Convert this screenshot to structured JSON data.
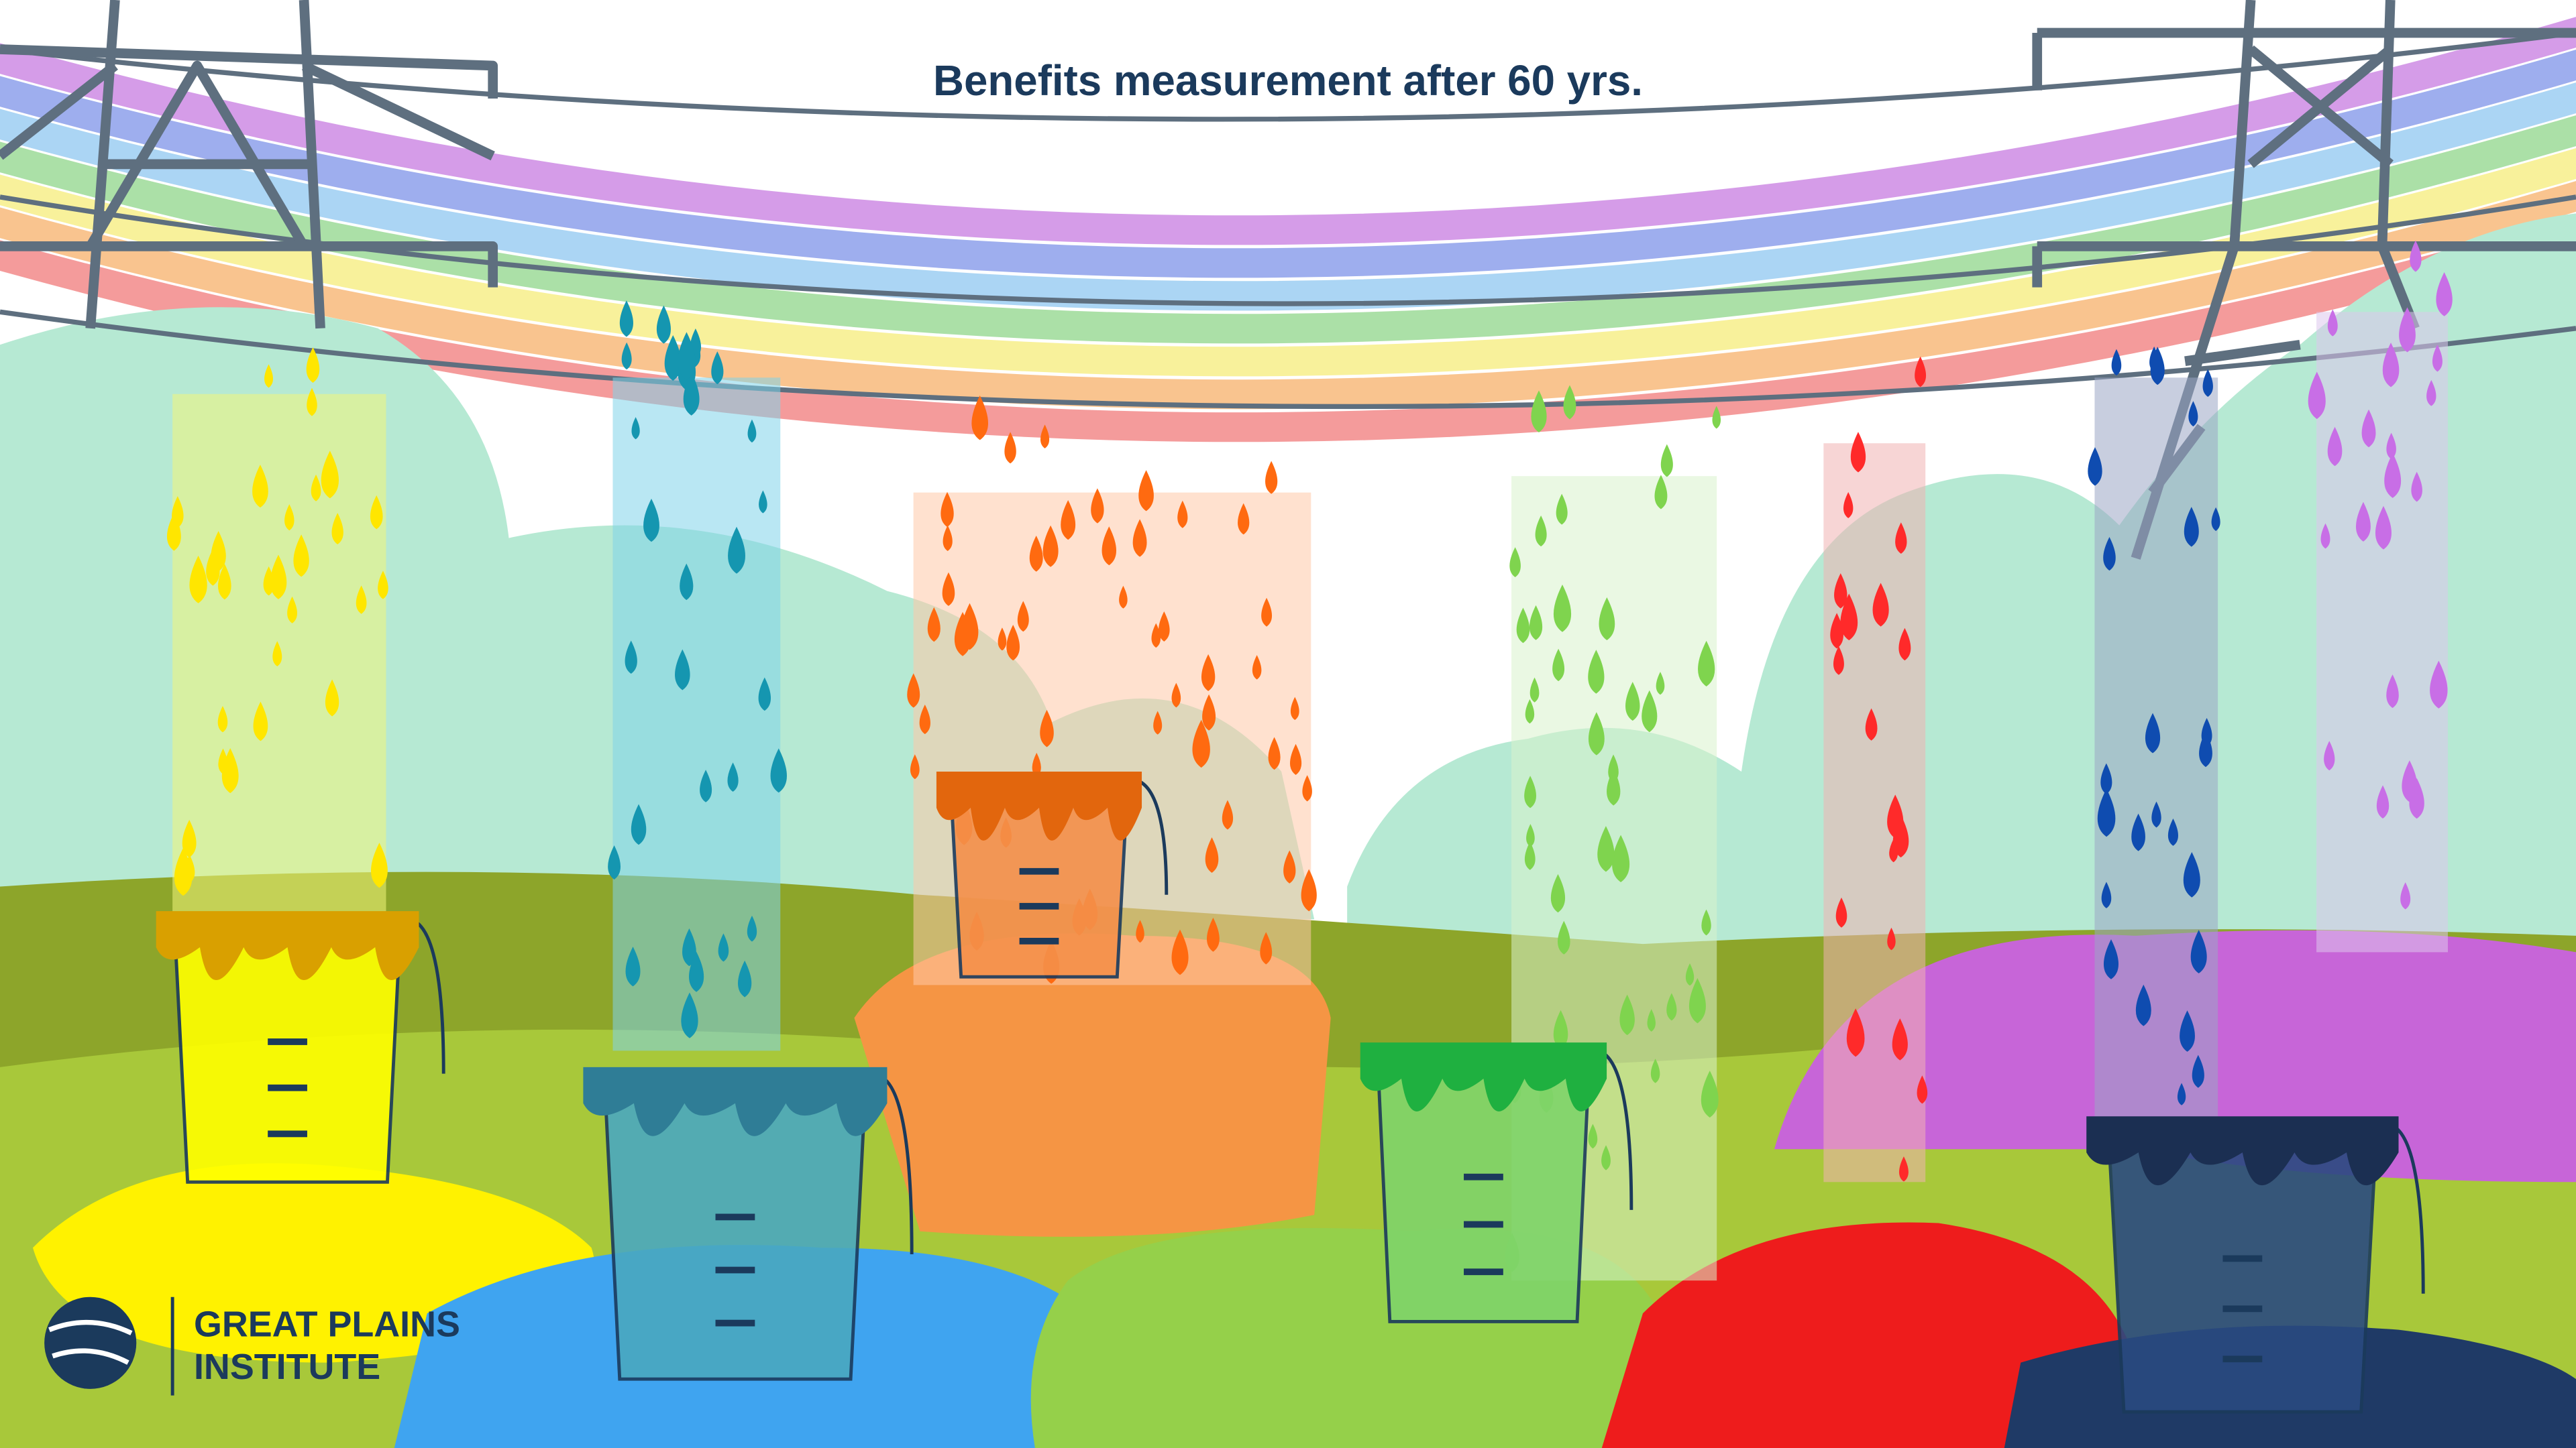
{
  "header": {
    "title": "Benefits measurement after 60 yrs."
  },
  "logo": {
    "line1": "GREAT PLAINS",
    "line2": "INSTITUTE"
  }
}
